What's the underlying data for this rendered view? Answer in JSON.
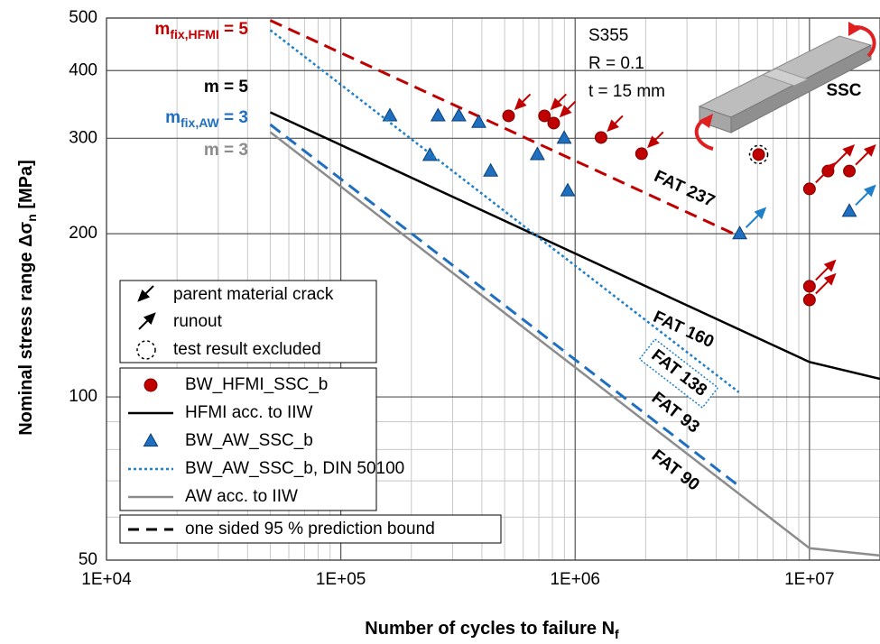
{
  "chart_data": {
    "type": "line",
    "xlabel": {
      "text": "Number of cycles to failure N",
      "sub": "f"
    },
    "ylabel": {
      "text": "Nominal stress range Δσ",
      "sub": "n",
      "suffix": " [MPa]"
    },
    "xscale": "log",
    "yscale": "log",
    "xlim": [
      10000,
      20000000
    ],
    "ylim": [
      50,
      500
    ],
    "xticks": [
      {
        "value": 10000,
        "label": "1E+04"
      },
      {
        "value": 100000,
        "label": "1E+05"
      },
      {
        "value": 1000000,
        "label": "1E+06"
      },
      {
        "value": 10000000,
        "label": "1E+07"
      }
    ],
    "yticks": [
      50,
      100,
      200,
      300,
      400,
      500
    ],
    "xminor": [
      20000,
      30000,
      40000,
      50000,
      60000,
      70000,
      80000,
      90000,
      200000,
      300000,
      400000,
      500000,
      600000,
      700000,
      800000,
      900000,
      2000000,
      3000000,
      4000000,
      5000000,
      6000000,
      7000000,
      8000000,
      9000000
    ],
    "yminor": [
      60,
      70,
      80,
      90
    ],
    "grid": true,
    "series": [
      {
        "name": "BW_HFMI_SSC_b",
        "style": "circle",
        "color": "#c00000",
        "x": [
          520000,
          740000,
          810000,
          1290000,
          1920000,
          6070000,
          10000000,
          12000000,
          14800000,
          10000000,
          10000000
        ],
        "y": [
          330,
          330,
          320,
          301,
          281,
          280,
          242,
          261,
          261,
          160,
          151
        ]
      },
      {
        "name": "HFMI acc. to IIW",
        "style": "solid",
        "color": "#000000",
        "label": "FAT 160",
        "x": [
          50000,
          10000000,
          20000000
        ],
        "y": [
          335,
          116,
          108
        ]
      },
      {
        "name": "BW_AW_SSC_b",
        "style": "triangle",
        "color": "#1f6fc0",
        "x": [
          162000,
          240000,
          260000,
          319000,
          388000,
          436000,
          690000,
          898000,
          930000,
          5040000,
          14800000
        ],
        "y": [
          330,
          279,
          330,
          330,
          321,
          261,
          280,
          300,
          240,
          200,
          220
        ]
      },
      {
        "name": "BW_AW_SSC_b, DIN 50100",
        "style": "dotted",
        "color": "#1f7fc8",
        "label": "FAT 138",
        "x": [
          50000,
          5000000
        ],
        "y": [
          475,
          102
        ]
      },
      {
        "name": "AW acc. to IIW",
        "style": "solid",
        "color": "#8c8c8c",
        "label": "FAT 90",
        "x": [
          50000,
          10000000,
          20000000
        ],
        "y": [
          308,
          52.6,
          51
        ]
      }
    ],
    "bounds": {
      "name": "one sided 95 % prediction bound",
      "lines": [
        {
          "label": "FAT 237",
          "color": "#c00000",
          "x": [
            50000,
            5000000
          ],
          "y": [
            495,
            198
          ]
        },
        {
          "label": "FAT 93",
          "color": "#1f6fc0",
          "x": [
            50000,
            5000000
          ],
          "y": [
            318,
            68.5
          ]
        }
      ]
    },
    "notes": [
      {
        "label": "parent material crack",
        "kind": "crack",
        "points": [
          {
            "x": 520000,
            "y": 330,
            "color": "#c00000"
          },
          {
            "x": 740000,
            "y": 330,
            "color": "#c00000"
          },
          {
            "x": 810000,
            "y": 320,
            "color": "#c00000"
          },
          {
            "x": 1290000,
            "y": 301,
            "color": "#c00000"
          },
          {
            "x": 1920000,
            "y": 281,
            "color": "#c00000"
          }
        ]
      },
      {
        "label": "runout",
        "kind": "runout",
        "points": [
          {
            "x": 10000000,
            "y": 242,
            "color": "#c00000"
          },
          {
            "x": 12000000,
            "y": 261,
            "color": "#c00000"
          },
          {
            "x": 14800000,
            "y": 261,
            "color": "#c00000"
          },
          {
            "x": 10000000,
            "y": 160,
            "color": "#c00000"
          },
          {
            "x": 10000000,
            "y": 151,
            "color": "#c00000"
          },
          {
            "x": 5040000,
            "y": 200,
            "color": "#1f7fc8"
          },
          {
            "x": 14800000,
            "y": 220,
            "color": "#1f7fc8"
          }
        ]
      },
      {
        "label": "test result excluded",
        "kind": "excluded",
        "points": [
          {
            "x": 6070000,
            "y": 280,
            "color": "#000000"
          }
        ]
      }
    ],
    "slopes": [
      {
        "base": "m",
        "sub": "fix,HFMI",
        "text": " = 5",
        "color": "#c00000"
      },
      {
        "base": "m = 5",
        "color": "#000000"
      },
      {
        "base": "m",
        "sub": "fix,AW",
        "text": " = 3",
        "color": "#1f6fc0"
      },
      {
        "base": "m = 3",
        "color": "#8c8c8c"
      }
    ],
    "specimen": {
      "lines": [
        "S355",
        "R = 0.1",
        "t = 15 mm"
      ],
      "label": "SSC"
    }
  }
}
